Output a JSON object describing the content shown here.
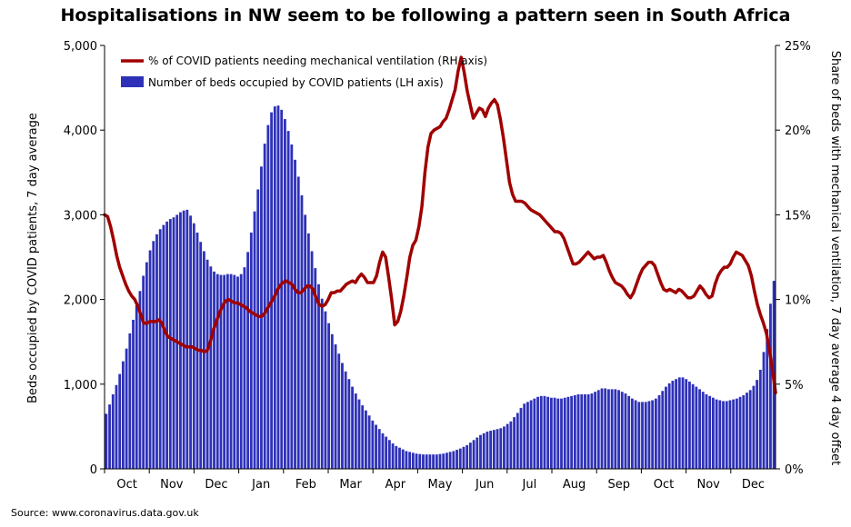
{
  "title": "Hospitalisations in NW seem to be following a pattern seen in South Africa",
  "source": "Source: www.coronavirus.data.gov.uk",
  "colors": {
    "bars": "#2e31b8",
    "line": "#a00000"
  },
  "chart_data": {
    "type": "bar+line",
    "title": "Hospitalisations in NW seem to be following a pattern seen in South Africa",
    "x_tick_labels": [
      "Oct",
      "Nov",
      "Dec",
      "Jan",
      "Feb",
      "Mar",
      "Apr",
      "May",
      "Jun",
      "Jul",
      "Aug",
      "Sep",
      "Oct",
      "Nov",
      "Dec"
    ],
    "left_axis": {
      "label": "Beds occupied by COVID patients, 7 day average",
      "ylim": [
        0,
        5000
      ],
      "tick_labels": [
        "0",
        "1,000",
        "2,000",
        "3,000",
        "4,000",
        "5,000"
      ]
    },
    "right_axis": {
      "label": "Share of beds with mechanical ventilation, 7 day average 4 day offset",
      "ylim": [
        0,
        25
      ],
      "tick_labels": [
        "0%",
        "5%",
        "10%",
        "15%",
        "20%",
        "25%"
      ]
    },
    "legend": {
      "position": "top-left",
      "line_label": "% of COVID patients needing mechanical ventilation (RH axis)",
      "bar_label": "Number of beds occupied by COVID patients (LH axis)"
    },
    "series": [
      {
        "name": "Number of beds occupied by COVID patients (LH axis)",
        "kind": "bar",
        "axis": "left",
        "step_days": 2,
        "values": [
          650,
          760,
          880,
          990,
          1120,
          1270,
          1420,
          1600,
          1760,
          1930,
          2100,
          2280,
          2440,
          2580,
          2690,
          2770,
          2830,
          2880,
          2920,
          2950,
          2970,
          3000,
          3030,
          3050,
          3060,
          2990,
          2900,
          2790,
          2680,
          2570,
          2470,
          2390,
          2330,
          2300,
          2290,
          2290,
          2300,
          2300,
          2290,
          2270,
          2300,
          2380,
          2560,
          2790,
          3040,
          3300,
          3570,
          3840,
          4060,
          4210,
          4280,
          4290,
          4240,
          4130,
          3990,
          3830,
          3650,
          3450,
          3230,
          3000,
          2780,
          2570,
          2370,
          2180,
          2010,
          1860,
          1720,
          1590,
          1470,
          1360,
          1250,
          1150,
          1060,
          970,
          890,
          820,
          750,
          690,
          630,
          570,
          520,
          470,
          420,
          380,
          340,
          300,
          270,
          250,
          230,
          210,
          200,
          190,
          180,
          175,
          170,
          170,
          170,
          170,
          170,
          175,
          180,
          190,
          200,
          210,
          225,
          240,
          260,
          280,
          310,
          340,
          370,
          400,
          420,
          440,
          450,
          460,
          470,
          480,
          500,
          530,
          560,
          610,
          660,
          720,
          770,
          790,
          810,
          830,
          850,
          860,
          860,
          850,
          840,
          840,
          830,
          830,
          840,
          850,
          860,
          870,
          880,
          880,
          880,
          880,
          890,
          910,
          930,
          950,
          950,
          940,
          940,
          940,
          930,
          910,
          890,
          860,
          830,
          810,
          790,
          790,
          790,
          800,
          810,
          830,
          870,
          920,
          970,
          1010,
          1040,
          1060,
          1080,
          1080,
          1060,
          1030,
          1000,
          970,
          940,
          910,
          880,
          860,
          840,
          820,
          810,
          800,
          800,
          810,
          820,
          830,
          850,
          870,
          900,
          930,
          980,
          1050,
          1170,
          1380,
          1650,
          1950,
          2220
        ]
      },
      {
        "name": "% of COVID patients needing mechanical ventilation (RH axis)",
        "kind": "line",
        "axis": "right",
        "step_days": 2,
        "values": [
          15.0,
          14.9,
          14.3,
          13.5,
          12.6,
          11.9,
          11.4,
          10.9,
          10.5,
          10.2,
          10.0,
          9.6,
          9.1,
          8.6,
          8.6,
          8.7,
          8.7,
          8.7,
          8.8,
          8.6,
          8.1,
          7.8,
          7.7,
          7.6,
          7.5,
          7.4,
          7.3,
          7.2,
          7.2,
          7.2,
          7.1,
          7.0,
          7.0,
          6.9,
          7.0,
          7.5,
          8.2,
          8.7,
          9.2,
          9.6,
          9.9,
          10.0,
          9.9,
          9.8,
          9.8,
          9.7,
          9.6,
          9.5,
          9.3,
          9.2,
          9.1,
          9.0,
          9.0,
          9.2,
          9.5,
          9.8,
          10.1,
          10.5,
          10.8,
          11.0,
          11.1,
          11.0,
          10.9,
          10.6,
          10.4,
          10.4,
          10.6,
          10.8,
          10.8,
          10.6,
          10.1,
          9.7,
          9.6,
          9.7,
          10.0,
          10.4,
          10.4,
          10.5,
          10.5,
          10.7,
          10.9,
          11.0,
          11.1,
          11.0,
          11.3,
          11.5,
          11.3,
          11.0,
          11.0,
          11.0,
          11.4,
          12.2,
          12.8,
          12.5,
          11.3,
          10.0,
          8.5,
          8.7,
          9.3,
          10.2,
          11.3,
          12.5,
          13.2,
          13.5,
          14.3,
          15.5,
          17.5,
          19.0,
          19.8,
          20.0,
          20.1,
          20.2,
          20.5,
          20.7,
          21.2,
          21.8,
          22.4,
          23.5,
          24.3,
          23.4,
          22.3,
          21.5,
          20.7,
          21.0,
          21.3,
          21.2,
          20.8,
          21.3,
          21.6,
          21.8,
          21.5,
          20.6,
          19.5,
          18.2,
          16.9,
          16.2,
          15.8,
          15.8,
          15.8,
          15.7,
          15.5,
          15.3,
          15.2,
          15.1,
          15.0,
          14.8,
          14.6,
          14.4,
          14.2,
          14.0,
          14.0,
          13.9,
          13.6,
          13.1,
          12.6,
          12.1,
          12.1,
          12.2,
          12.4,
          12.6,
          12.8,
          12.6,
          12.4,
          12.5,
          12.5,
          12.6,
          12.2,
          11.7,
          11.3,
          11.0,
          10.9,
          10.8,
          10.6,
          10.3,
          10.1,
          10.4,
          10.9,
          11.4,
          11.8,
          12.0,
          12.2,
          12.2,
          12.0,
          11.5,
          11.0,
          10.6,
          10.5,
          10.6,
          10.5,
          10.4,
          10.6,
          10.5,
          10.3,
          10.1,
          10.1,
          10.2,
          10.5,
          10.8,
          10.6,
          10.3,
          10.1,
          10.2,
          10.9,
          11.4,
          11.7,
          11.9,
          11.9,
          12.1,
          12.5,
          12.8,
          12.7,
          12.6,
          12.3,
          12.0,
          11.4,
          10.5,
          9.7,
          9.1,
          8.6,
          8.0,
          7.0,
          5.8,
          4.5
        ]
      }
    ]
  }
}
